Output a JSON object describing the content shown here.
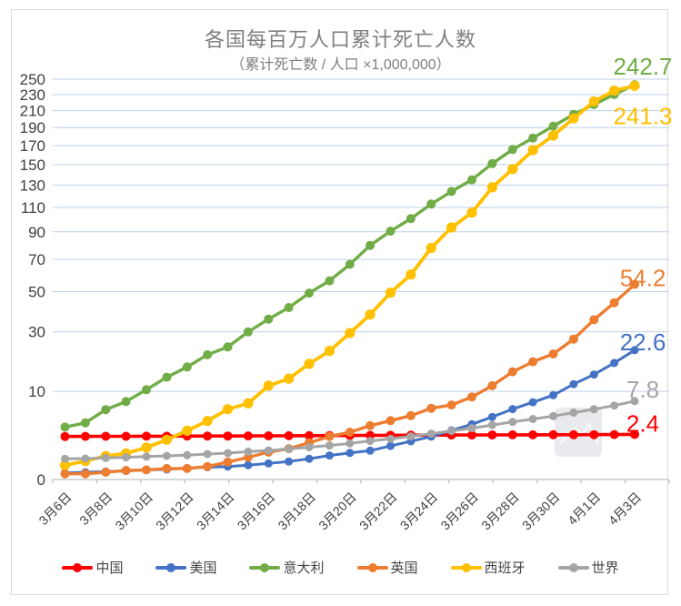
{
  "chart_data": {
    "type": "line",
    "title": "各国每百万人口累计死亡人数",
    "subtitle": "（累计死亡数 / 人口 ×1,000,000）",
    "x": [
      "3月6日",
      "3月7日",
      "3月8日",
      "3月9日",
      "3月10日",
      "3月11日",
      "3月12日",
      "3月13日",
      "3月14日",
      "3月15日",
      "3月16日",
      "3月17日",
      "3月18日",
      "3月19日",
      "3月20日",
      "3月21日",
      "3月22日",
      "3月23日",
      "3月24日",
      "3月25日",
      "3月26日",
      "3月27日",
      "3月28日",
      "3月29日",
      "3月30日",
      "3月31日",
      "4月1日",
      "4月2日",
      "4月3日"
    ],
    "x_tick_labels": [
      "3月6日",
      "3月8日",
      "3月10日",
      "3月12日",
      "3月14日",
      "3月16日",
      "3月18日",
      "3月20日",
      "3月22日",
      "3月24日",
      "3月26日",
      "3月28日",
      "3月30日",
      "4月1日",
      "4月3日"
    ],
    "y_axis": {
      "min": 0,
      "max": 250,
      "ticks": [
        0,
        10,
        30,
        50,
        70,
        90,
        110,
        130,
        150,
        170,
        190,
        210,
        230,
        250
      ],
      "scale": "square-root-like"
    },
    "grid": true,
    "legend_position": "bottom",
    "series": [
      {
        "id": "china",
        "name": "中国",
        "color": "#FF0000",
        "end_label": "2.4",
        "values": [
          2.17,
          2.18,
          2.19,
          2.19,
          2.2,
          2.2,
          2.21,
          2.22,
          2.22,
          2.23,
          2.24,
          2.25,
          2.26,
          2.27,
          2.28,
          2.29,
          2.3,
          2.31,
          2.32,
          2.33,
          2.33,
          2.34,
          2.35,
          2.35,
          2.36,
          2.36,
          2.37,
          2.38,
          2.4
        ]
      },
      {
        "id": "usa",
        "name": "美国",
        "color": "#4472C4",
        "end_label": "22.6",
        "values": [
          0.04,
          0.05,
          0.06,
          0.07,
          0.09,
          0.1,
          0.13,
          0.15,
          0.17,
          0.21,
          0.27,
          0.34,
          0.46,
          0.63,
          0.78,
          0.93,
          1.28,
          1.7,
          2.16,
          2.88,
          3.69,
          4.83,
          6.19,
          7.54,
          9.1,
          11.8,
          14.5,
          18.1,
          22.6
        ]
      },
      {
        "id": "italy",
        "name": "意大利",
        "color": "#70AD47",
        "end_label": "242.7",
        "values": [
          3.3,
          3.9,
          6.1,
          7.7,
          10.4,
          13.7,
          16.8,
          20.9,
          23.8,
          29.9,
          35.7,
          41.4,
          49.2,
          56.3,
          66.7,
          79.8,
          90.5,
          100.5,
          112.8,
          124.1,
          135,
          151,
          165.7,
          178.2,
          191.7,
          205.5,
          217.5,
          230.1,
          242.7
        ]
      },
      {
        "id": "uk",
        "name": "英国",
        "color": "#ED7D31",
        "end_label": "54.2",
        "values": [
          0.03,
          0.03,
          0.05,
          0.08,
          0.09,
          0.12,
          0.12,
          0.17,
          0.32,
          0.53,
          0.83,
          1.07,
          1.56,
          2.17,
          2.66,
          3.5,
          4.23,
          5.04,
          6.35,
          6.99,
          8.69,
          11.4,
          15.3,
          18.5,
          21.2,
          26.9,
          35.4,
          43.9,
          54.2
        ]
      },
      {
        "id": "spain",
        "name": "西班牙",
        "color": "#FFC000",
        "end_label": "241.3",
        "values": [
          0.21,
          0.36,
          0.6,
          0.75,
          1.16,
          1.84,
          2.84,
          4.17,
          6.18,
          7.32,
          11.4,
          13.3,
          17.8,
          22.3,
          29.4,
          37.9,
          49.4,
          60.1,
          78,
          93.4,
          105.5,
          127.9,
          145.5,
          165,
          181,
          200.8,
          221.3,
          235,
          241.3
        ]
      },
      {
        "id": "world",
        "name": "世界",
        "color": "#A5A5A5",
        "end_label": "7.8",
        "values": [
          0.46,
          0.47,
          0.5,
          0.53,
          0.57,
          0.61,
          0.65,
          0.71,
          0.77,
          0.86,
          0.94,
          1.05,
          1.18,
          1.32,
          1.5,
          1.72,
          1.93,
          2.18,
          2.49,
          2.81,
          3.16,
          3.59,
          4.04,
          4.48,
          4.96,
          5.55,
          6.17,
          6.88,
          7.8
        ]
      }
    ]
  },
  "icons": {
    "watermark": "image-placeholder-watermark"
  }
}
